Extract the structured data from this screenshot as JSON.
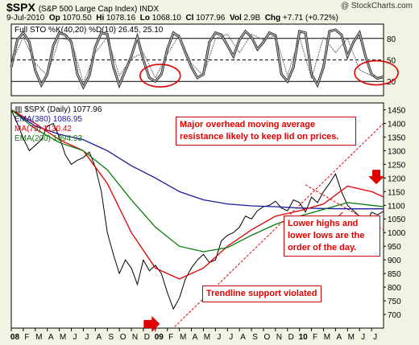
{
  "header": {
    "symbol": "$SPX",
    "name": "(S&P 500 Large Cap Index) INDX",
    "site": "@ StockCharts.com",
    "quote": {
      "date": "9-Jul-2010",
      "op_label": "Op",
      "op": "1070.50",
      "hi_label": "Hi",
      "hi": "1078.16",
      "lo_label": "Lo",
      "lo": "1068.10",
      "cl_label": "Cl",
      "cl": "1077.96",
      "vol_label": "Vol",
      "vol": "2.9B",
      "chg_label": "Chg",
      "chg": "+7.71 (+0.72%)"
    }
  },
  "colors": {
    "price": "#000000",
    "ema380": "#1a1aa0",
    "ma75": "#e00000",
    "ema200": "#0a7a0a",
    "annotation": "#e00000",
    "background": "#f3f3e4",
    "plot": "#ffffff"
  },
  "chart_data": [
    {
      "type": "line",
      "panel": "stochastic",
      "legend": "Full STO %K(40,20) %D(10) 26.45, 25.10",
      "ylim": [
        0,
        100
      ],
      "yticks": [
        "20",
        "50",
        "80"
      ],
      "reference_levels": [
        20,
        50,
        80
      ],
      "series": [
        {
          "name": "%K",
          "x": [
            0,
            0.5,
            1,
            1.5,
            2,
            2.5,
            3,
            3.5,
            4,
            4.5,
            5,
            5.5,
            6,
            6.5,
            7,
            7.5,
            8,
            8.5,
            9,
            9.5,
            10,
            10.5,
            11,
            11.5,
            12,
            12.5,
            13,
            13.5,
            14,
            14.5,
            15,
            15.5,
            16,
            16.5,
            17,
            17.5,
            18,
            18.5,
            19,
            19.5,
            20,
            20.5,
            21,
            21.5,
            22,
            22.5,
            23,
            23.5,
            24,
            24.5,
            25,
            25.5,
            26,
            26.5,
            27,
            27.5,
            28,
            28.5,
            29,
            29.5,
            30,
            30.5,
            31
          ],
          "values": [
            40,
            78,
            88,
            75,
            35,
            15,
            30,
            70,
            88,
            85,
            75,
            30,
            12,
            28,
            68,
            88,
            86,
            40,
            15,
            35,
            55,
            82,
            50,
            25,
            20,
            30,
            65,
            88,
            82,
            60,
            40,
            25,
            30,
            75,
            88,
            85,
            70,
            55,
            78,
            90,
            82,
            65,
            75,
            88,
            84,
            30,
            20,
            40,
            90,
            88,
            30,
            15,
            40,
            90,
            92,
            85,
            55,
            75,
            88,
            55,
            30,
            24,
            26.45
          ]
        },
        {
          "name": "%D",
          "x": [
            0,
            1,
            2,
            3,
            4,
            5,
            6,
            7,
            8,
            9,
            10,
            11,
            12,
            13,
            14,
            15,
            16,
            17,
            18,
            19,
            20,
            21,
            22,
            23,
            24,
            25,
            26,
            27,
            28,
            29,
            30,
            31
          ],
          "values": [
            45,
            82,
            45,
            28,
            80,
            78,
            18,
            60,
            82,
            28,
            52,
            60,
            25,
            58,
            85,
            45,
            28,
            80,
            86,
            60,
            86,
            78,
            84,
            28,
            82,
            24,
            82,
            60,
            80,
            36,
            28,
            25.1
          ]
        }
      ],
      "x_ticks": [
        "08",
        "F",
        "M",
        "A",
        "M",
        "J",
        "J",
        "A",
        "S",
        "O",
        "N",
        "D",
        "09",
        "F",
        "M",
        "A",
        "M",
        "J",
        "J",
        "A",
        "S",
        "O",
        "N",
        "D",
        "10",
        "F",
        "M",
        "A",
        "M",
        "J",
        "J"
      ]
    },
    {
      "type": "line",
      "panel": "price",
      "title": "$SPX (Daily) 1077.96",
      "ylim": [
        650,
        1475
      ],
      "yticks": [
        "700",
        "750",
        "800",
        "850",
        "900",
        "950",
        "1000",
        "1050",
        "1100",
        "1150",
        "1200",
        "1250",
        "1300",
        "1350",
        "1400",
        "1450"
      ],
      "x_ticks": [
        "08",
        "F",
        "M",
        "A",
        "M",
        "J",
        "J",
        "A",
        "S",
        "O",
        "N",
        "D",
        "09",
        "F",
        "M",
        "A",
        "M",
        "J",
        "J",
        "A",
        "S",
        "O",
        "N",
        "D",
        "10",
        "F",
        "M",
        "A",
        "M",
        "J",
        "J"
      ],
      "series": [
        {
          "name": "$SPX (Daily) 1077.96",
          "x": [
            0,
            0.5,
            1,
            1.5,
            2,
            2.5,
            3,
            3.5,
            4,
            4.5,
            5,
            5.5,
            6,
            6.5,
            7,
            7.5,
            8,
            8.5,
            9,
            9.5,
            10,
            10.5,
            11,
            11.5,
            12,
            12.5,
            13,
            13.5,
            14,
            14.5,
            15,
            15.5,
            16,
            16.5,
            17,
            17.5,
            18,
            18.5,
            19,
            19.5,
            20,
            20.5,
            21,
            21.5,
            22,
            22.5,
            23,
            23.5,
            24,
            24.5,
            25,
            25.5,
            26,
            26.5,
            27,
            27.5,
            28,
            28.5,
            29,
            29.5,
            30,
            30.5,
            31
          ],
          "values": [
            1450,
            1400,
            1345,
            1300,
            1320,
            1340,
            1390,
            1400,
            1350,
            1285,
            1250,
            1265,
            1275,
            1295,
            1240,
            1150,
            1000,
            920,
            850,
            900,
            870,
            810,
            900,
            860,
            880,
            850,
            780,
            720,
            760,
            830,
            870,
            900,
            920,
            890,
            900,
            970,
            990,
            1000,
            1020,
            1060,
            1050,
            1080,
            1095,
            1100,
            1115,
            1090,
            1080,
            1120,
            1110,
            1075,
            1130,
            1110,
            1150,
            1180,
            1215,
            1150,
            1100,
            1080,
            1060,
            1020,
            1075,
            1065,
            1078
          ]
        },
        {
          "name": "EMA(380) 1086.95",
          "x": [
            0,
            2,
            4,
            6,
            8,
            10,
            12,
            14,
            16,
            18,
            20,
            22,
            24,
            26,
            28,
            30,
            31
          ],
          "values": [
            1450,
            1390,
            1360,
            1340,
            1300,
            1245,
            1200,
            1150,
            1120,
            1105,
            1098,
            1095,
            1090,
            1088,
            1087,
            1087,
            1086.95
          ]
        },
        {
          "name": "MA(75) 1130.42",
          "x": [
            0,
            2,
            4,
            6,
            8,
            10,
            12,
            14,
            16,
            18,
            20,
            22,
            24,
            26,
            28,
            30,
            31
          ],
          "values": [
            1450,
            1400,
            1340,
            1300,
            1180,
            1000,
            870,
            830,
            870,
            950,
            1010,
            1060,
            1080,
            1105,
            1170,
            1150,
            1130.42
          ]
        },
        {
          "name": "EMA(200) 1094.93",
          "x": [
            0,
            2,
            4,
            6,
            8,
            10,
            12,
            14,
            16,
            18,
            20,
            22,
            24,
            26,
            28,
            30,
            31
          ],
          "values": [
            1450,
            1380,
            1330,
            1300,
            1230,
            1120,
            1020,
            950,
            930,
            945,
            990,
            1030,
            1060,
            1085,
            1110,
            1100,
            1094.93
          ]
        }
      ],
      "annotations": [
        "Major overhead moving average resistance likely to keep lid on prices.",
        "Lower highs and lower lows are the order of the day.",
        "Trendline support violated"
      ]
    }
  ]
}
